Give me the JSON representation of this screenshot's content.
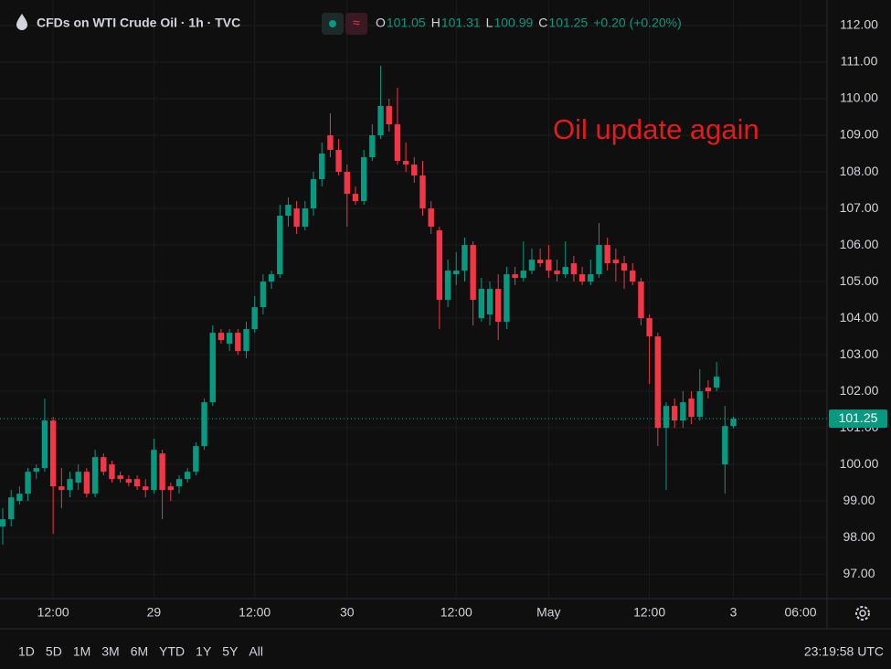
{
  "header": {
    "symbol": "CFDs on WTI Crude Oil · 1h · TVC",
    "open_label": "O",
    "open": 101.05,
    "high_label": "H",
    "high": 101.31,
    "low_label": "L",
    "low": 100.99,
    "close_label": "C",
    "close": 101.25,
    "change": "+0.20 (+0.20%)"
  },
  "toolbar": {
    "ranges": [
      "1D",
      "5D",
      "1M",
      "3M",
      "6M",
      "YTD",
      "1Y",
      "5Y",
      "All"
    ],
    "clock": "23:19:58 UTC"
  },
  "chart_data": {
    "type": "candlestick",
    "annotation": "Oil update again",
    "up_color": "#089981",
    "down_color": "#f23645",
    "grid": true,
    "categories": [
      null,
      null,
      null,
      null,
      null,
      null,
      "12:00",
      null,
      null,
      null,
      null,
      null,
      null,
      null,
      null,
      null,
      null,
      null,
      "29",
      null,
      null,
      null,
      null,
      null,
      null,
      null,
      null,
      null,
      null,
      null,
      "12:00",
      null,
      null,
      null,
      null,
      null,
      null,
      null,
      null,
      null,
      null,
      "30",
      null,
      null,
      null,
      null,
      null,
      null,
      null,
      null,
      null,
      null,
      null,
      null,
      "12:00",
      null,
      null,
      null,
      null,
      null,
      null,
      null,
      null,
      null,
      null,
      "May",
      null,
      null,
      null,
      null,
      null,
      null,
      null,
      null,
      null,
      null,
      null,
      "12:00",
      null,
      null,
      null,
      null,
      null,
      null,
      null,
      null,
      null,
      "3",
      null,
      null,
      null,
      null,
      null,
      null,
      null,
      "06:00"
    ],
    "open": [
      98.3,
      98.5,
      99.0,
      99.2,
      99.8,
      99.9,
      101.2,
      99.4,
      99.3,
      99.5,
      99.8,
      99.2,
      100.2,
      100.0,
      99.7,
      99.6,
      99.6,
      99.4,
      99.3,
      100.3,
      99.4,
      99.4,
      99.6,
      99.8,
      100.5,
      101.7,
      103.6,
      103.3,
      103.6,
      103.1,
      103.7,
      104.3,
      105.0,
      105.2,
      106.8,
      107.0,
      106.5,
      107.0,
      107.8,
      109.0,
      108.6,
      108.0,
      107.4,
      107.2,
      108.4,
      109.0,
      109.8,
      109.3,
      108.3,
      108.2,
      107.9,
      107.0,
      106.4,
      104.5,
      105.2,
      105.3,
      106.0,
      104.0,
      104.1,
      104.8,
      103.9,
      105.2,
      105.1,
      105.3,
      105.6,
      105.6,
      105.3,
      105.2,
      105.5,
      105.2,
      105.0,
      105.2,
      106.0,
      105.6,
      105.5,
      105.3,
      105.0,
      104.0,
      103.5,
      101.0,
      101.6,
      101.2,
      101.8,
      101.3,
      102.1,
      102.1,
      100.0,
      101.05,
      null,
      null,
      null,
      null,
      null,
      null,
      null,
      null
    ],
    "high": [
      98.8,
      99.3,
      99.4,
      99.9,
      100.0,
      101.8,
      101.3,
      99.9,
      99.8,
      100.0,
      99.9,
      100.4,
      100.3,
      100.1,
      99.8,
      99.7,
      99.7,
      99.6,
      100.7,
      100.4,
      99.5,
      99.7,
      99.9,
      100.6,
      101.8,
      103.8,
      103.7,
      103.7,
      103.7,
      103.9,
      104.6,
      105.2,
      105.3,
      107.1,
      107.3,
      107.2,
      107.2,
      108.0,
      108.8,
      109.6,
      108.9,
      108.2,
      107.6,
      108.6,
      109.3,
      110.9,
      110.0,
      110.3,
      108.8,
      108.4,
      108.3,
      107.2,
      106.5,
      105.6,
      105.8,
      106.2,
      106.1,
      105.1,
      105.0,
      105.2,
      105.4,
      105.4,
      106.1,
      105.9,
      105.9,
      106.0,
      105.6,
      106.1,
      105.7,
      105.4,
      105.6,
      106.6,
      106.2,
      105.9,
      105.7,
      105.5,
      105.1,
      104.1,
      103.6,
      101.7,
      101.8,
      102.0,
      102.0,
      102.6,
      102.3,
      102.8,
      101.6,
      101.31,
      null,
      null,
      null,
      null,
      null,
      null,
      null,
      null
    ],
    "low": [
      97.8,
      98.3,
      98.9,
      99.0,
      99.6,
      99.8,
      98.1,
      98.8,
      99.1,
      99.3,
      99.1,
      99.1,
      99.7,
      99.5,
      99.5,
      99.4,
      99.3,
      99.1,
      99.2,
      98.5,
      99.0,
      99.2,
      99.5,
      99.7,
      100.4,
      101.6,
      103.3,
      103.1,
      103.0,
      102.9,
      103.6,
      104.1,
      104.8,
      105.1,
      106.5,
      106.3,
      106.4,
      106.8,
      107.6,
      108.4,
      107.9,
      106.5,
      107.1,
      107.1,
      108.3,
      108.9,
      109.1,
      108.2,
      108.0,
      107.7,
      106.8,
      106.3,
      103.7,
      104.3,
      104.9,
      105.0,
      103.8,
      103.9,
      103.8,
      103.4,
      103.7,
      104.9,
      105.0,
      105.2,
      105.4,
      105.1,
      105.0,
      105.1,
      105.0,
      104.9,
      104.9,
      105.1,
      105.3,
      105.0,
      104.8,
      104.9,
      103.8,
      102.2,
      100.5,
      99.3,
      101.0,
      101.0,
      101.1,
      101.2,
      101.8,
      102.0,
      99.2,
      100.99,
      null,
      null,
      null,
      null,
      null,
      null,
      null,
      null
    ],
    "close": [
      98.5,
      99.1,
      99.2,
      99.8,
      99.9,
      101.2,
      99.4,
      99.3,
      99.6,
      99.8,
      99.2,
      100.2,
      99.8,
      99.6,
      99.6,
      99.5,
      99.4,
      99.3,
      100.4,
      99.3,
      99.3,
      99.6,
      99.8,
      100.5,
      101.7,
      103.6,
      103.4,
      103.6,
      103.1,
      103.7,
      104.3,
      105.0,
      105.2,
      106.8,
      107.1,
      106.5,
      107.0,
      107.8,
      108.5,
      108.6,
      108.0,
      107.4,
      107.2,
      108.4,
      109.0,
      109.8,
      109.3,
      108.3,
      108.2,
      107.9,
      107.0,
      106.5,
      104.5,
      105.3,
      105.3,
      106.0,
      104.5,
      104.8,
      104.8,
      103.9,
      105.2,
      105.1,
      105.3,
      105.6,
      105.5,
      105.3,
      105.2,
      105.4,
      105.2,
      105.0,
      105.2,
      106.0,
      105.5,
      105.5,
      105.3,
      105.0,
      104.0,
      103.5,
      101.0,
      101.6,
      101.2,
      101.7,
      101.3,
      102.0,
      102.0,
      102.4,
      101.05,
      101.25,
      null,
      null,
      null,
      null,
      null,
      null,
      null,
      null
    ],
    "ylim": [
      96.33,
      112.7
    ],
    "yticks": [
      {
        "value": 97,
        "label": "97.00"
      },
      {
        "value": 98,
        "label": "98.00"
      },
      {
        "value": 99,
        "label": "99.00"
      },
      {
        "value": 100,
        "label": "100.00"
      },
      {
        "value": 101,
        "label": "101.00"
      },
      {
        "value": 102,
        "label": "102.00"
      },
      {
        "value": 103,
        "label": "103.00"
      },
      {
        "value": 104,
        "label": "104.00"
      },
      {
        "value": 105,
        "label": "105.00"
      },
      {
        "value": 106,
        "label": "106.00"
      },
      {
        "value": 107,
        "label": "107.00"
      },
      {
        "value": 108,
        "label": "108.00"
      },
      {
        "value": 109,
        "label": "109.00"
      },
      {
        "value": 110,
        "label": "110.00"
      },
      {
        "value": 111,
        "label": "111.00"
      },
      {
        "value": 112,
        "label": "112.00"
      }
    ]
  }
}
